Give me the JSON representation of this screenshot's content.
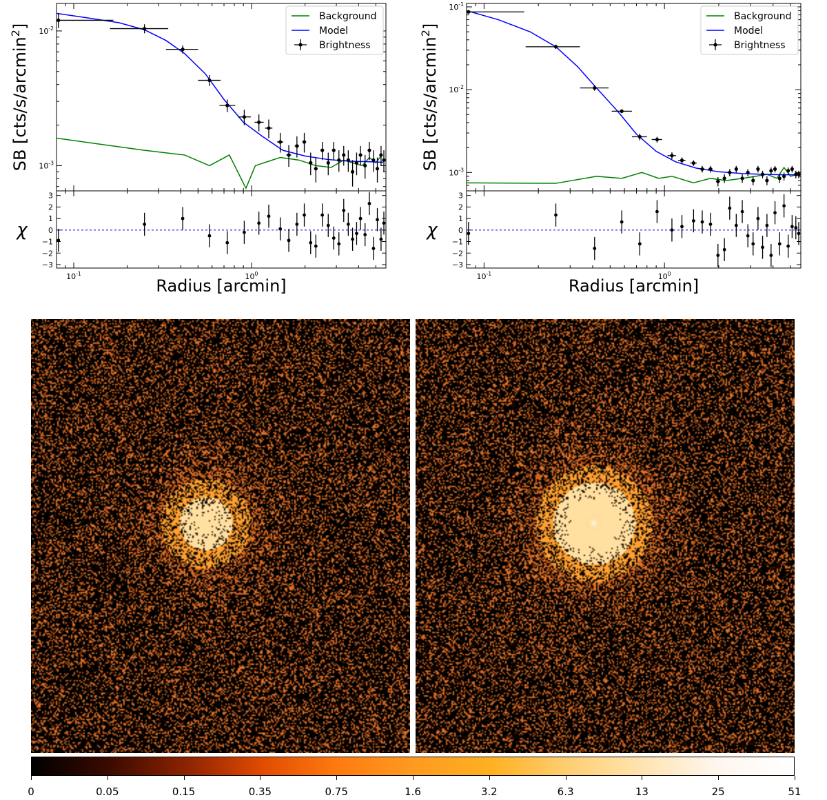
{
  "figure": {
    "colors": {
      "background": "#008000",
      "model": "#0000ff",
      "brightness": "#000000",
      "zero_line": "#0000ff"
    }
  },
  "chart_data": [
    {
      "type": "line",
      "name": "left-profile",
      "xlabel": "Radius [arcmin]",
      "ylabel": "SB [cts/s/arcmin2]",
      "xscale": "log",
      "yscale": "log",
      "xlim": [
        0.08,
        5.7
      ],
      "ylim": [
        0.00065,
        0.016
      ],
      "xticks": [
        {
          "v": 0.1,
          "label": "10^-1"
        },
        {
          "v": 1,
          "label": "10^0"
        }
      ],
      "yticks": [
        {
          "v": 0.001,
          "label": "10^-3"
        },
        {
          "v": 0.01,
          "label": "10^-2"
        }
      ],
      "legend": {
        "position": "top-right",
        "entries": [
          "Background",
          "Model",
          "Brightness"
        ]
      },
      "series": [
        {
          "name": "Background",
          "x": [
            0.08,
            0.25,
            0.42,
            0.58,
            0.75,
            0.93,
            1.05,
            1.45,
            1.85,
            2.3,
            2.8,
            3.3,
            3.7,
            4.2,
            4.6,
            5.0,
            5.4
          ],
          "y": [
            0.0016,
            0.0013,
            0.0012,
            0.001,
            0.0012,
            0.00068,
            0.001,
            0.00115,
            0.0011,
            0.001,
            0.00097,
            0.0011,
            0.00105,
            0.001,
            0.00115,
            0.00105,
            0.0012
          ]
        },
        {
          "name": "Model",
          "x": [
            0.08,
            0.12,
            0.18,
            0.25,
            0.33,
            0.42,
            0.55,
            0.7,
            0.9,
            1.15,
            1.5,
            2.0,
            2.7,
            3.5,
            4.5,
            5.5
          ],
          "y": [
            0.0135,
            0.0125,
            0.0115,
            0.0102,
            0.0085,
            0.0068,
            0.0048,
            0.0031,
            0.0021,
            0.00165,
            0.0013,
            0.00118,
            0.00111,
            0.00108,
            0.00107,
            0.00106
          ]
        },
        {
          "name": "Brightness",
          "x": [
            0.082,
            0.25,
            0.41,
            0.58,
            0.73,
            0.91,
            1.1,
            1.25,
            1.45,
            1.62,
            1.8,
            1.98,
            2.15,
            2.3,
            2.5,
            2.7,
            2.9,
            3.1,
            3.3,
            3.5,
            3.7,
            3.9,
            4.1,
            4.35,
            4.6,
            4.85,
            5.1,
            5.35,
            5.55
          ],
          "xerr_lo": [
            0.0,
            0.09,
            0.08,
            0.08,
            0.07,
            0.07,
            0.06,
            0.06,
            0.06,
            0.05,
            0.05,
            0.05,
            0.05,
            0.05,
            0.05,
            0.05,
            0.05,
            0.05,
            0.05,
            0.05,
            0.05,
            0.05,
            0.05,
            0.05,
            0.05,
            0.05,
            0.05,
            0.05,
            0.05
          ],
          "xerr_hi": [
            0.085,
            0.09,
            0.09,
            0.09,
            0.08,
            0.08,
            0.07,
            0.06,
            0.06,
            0.05,
            0.05,
            0.05,
            0.05,
            0.05,
            0.05,
            0.05,
            0.05,
            0.05,
            0.05,
            0.05,
            0.05,
            0.05,
            0.05,
            0.05,
            0.05,
            0.05,
            0.05,
            0.05,
            0.05
          ],
          "y": [
            0.012,
            0.0104,
            0.0073,
            0.0043,
            0.0028,
            0.0023,
            0.0021,
            0.0019,
            0.0015,
            0.0012,
            0.0014,
            0.0015,
            0.00105,
            0.00095,
            0.0013,
            0.00105,
            0.0013,
            0.0011,
            0.0012,
            0.0011,
            0.0009,
            0.00105,
            0.0012,
            0.001,
            0.0013,
            0.0011,
            0.00095,
            0.0012,
            0.0011
          ],
          "yerr": [
            0.0015,
            0.0008,
            0.0005,
            0.0004,
            0.0003,
            0.0003,
            0.0003,
            0.0003,
            0.00025,
            0.00022,
            0.00025,
            0.00025,
            0.0002,
            0.0002,
            0.0002,
            0.0002,
            0.0002,
            0.0002,
            0.0002,
            0.0002,
            0.0002,
            0.0002,
            0.0002,
            0.0002,
            0.0002,
            0.0002,
            0.0002,
            0.0002,
            0.0002
          ]
        }
      ],
      "residuals": {
        "ylabel": "χ",
        "ylim": [
          -3.3,
          3.4
        ],
        "yticks": [
          -3,
          -2,
          -1,
          0,
          1,
          2,
          3
        ],
        "x": [
          0.082,
          0.25,
          0.41,
          0.58,
          0.73,
          0.91,
          1.1,
          1.25,
          1.45,
          1.62,
          1.8,
          1.98,
          2.15,
          2.3,
          2.5,
          2.7,
          2.9,
          3.1,
          3.3,
          3.5,
          3.7,
          3.9,
          4.1,
          4.35,
          4.6,
          4.85,
          5.1,
          5.35,
          5.55
        ],
        "y": [
          -0.9,
          0.5,
          1.0,
          -0.5,
          -1.1,
          -0.2,
          0.6,
          1.2,
          0.1,
          -0.9,
          0.5,
          1.3,
          -1.1,
          -1.4,
          1.3,
          0.4,
          -0.7,
          -1.2,
          1.7,
          0.5,
          -0.8,
          -0.3,
          1.0,
          -0.4,
          2.3,
          -1.6,
          0.9,
          -0.8,
          0.6
        ],
        "err": [
          1,
          1,
          1,
          1,
          1,
          1,
          1,
          1,
          1,
          1,
          1,
          1,
          1,
          1,
          1,
          1,
          1,
          1,
          1,
          1,
          1,
          1,
          1,
          1,
          1,
          1,
          1,
          1,
          1
        ]
      }
    },
    {
      "type": "line",
      "name": "right-profile",
      "xlabel": "Radius [arcmin]",
      "ylabel": "SB [cts/s/arcmin2]",
      "xscale": "log",
      "yscale": "log",
      "xlim": [
        0.08,
        5.7
      ],
      "ylim": [
        0.0006,
        0.11
      ],
      "xticks": [
        {
          "v": 0.1,
          "label": "10^-1"
        },
        {
          "v": 1,
          "label": "10^0"
        }
      ],
      "yticks": [
        {
          "v": 0.001,
          "label": "10^-3"
        },
        {
          "v": 0.01,
          "label": "10^-2"
        },
        {
          "v": 0.1,
          "label": "10^-1"
        }
      ],
      "legend": {
        "position": "top-right",
        "entries": [
          "Background",
          "Model",
          "Brightness"
        ]
      },
      "series": [
        {
          "name": "Background",
          "x": [
            0.08,
            0.25,
            0.42,
            0.58,
            0.75,
            0.93,
            1.1,
            1.45,
            1.8,
            2.2,
            2.7,
            3.2,
            3.7,
            4.2,
            4.6,
            5.0,
            5.5
          ],
          "y": [
            0.00075,
            0.00074,
            0.0009,
            0.00085,
            0.001,
            0.00085,
            0.0009,
            0.00075,
            0.00085,
            0.0008,
            0.00085,
            0.0009,
            0.00095,
            0.00085,
            0.00115,
            0.0009,
            0.00095
          ]
        },
        {
          "name": "Model",
          "x": [
            0.08,
            0.12,
            0.18,
            0.25,
            0.33,
            0.42,
            0.55,
            0.7,
            0.9,
            1.15,
            1.5,
            2.0,
            2.7,
            3.5,
            4.5,
            5.5
          ],
          "y": [
            0.09,
            0.07,
            0.05,
            0.033,
            0.019,
            0.0105,
            0.0055,
            0.0029,
            0.0018,
            0.00135,
            0.00113,
            0.00102,
            0.00097,
            0.00095,
            0.00094,
            0.00094
          ]
        },
        {
          "name": "Brightness",
          "x": [
            0.082,
            0.25,
            0.41,
            0.58,
            0.73,
            0.91,
            1.1,
            1.25,
            1.45,
            1.62,
            1.8,
            1.98,
            2.15,
            2.3,
            2.5,
            2.7,
            2.9,
            3.1,
            3.3,
            3.5,
            3.7,
            3.9,
            4.1,
            4.35,
            4.6,
            4.85,
            5.1,
            5.35,
            5.55
          ],
          "xerr_lo": [
            0.0,
            0.08,
            0.07,
            0.07,
            0.07,
            0.06,
            0.06,
            0.06,
            0.06,
            0.05,
            0.05,
            0.05,
            0.05,
            0.05,
            0.05,
            0.05,
            0.05,
            0.05,
            0.05,
            0.05,
            0.05,
            0.05,
            0.05,
            0.05,
            0.05,
            0.05,
            0.05,
            0.05,
            0.05
          ],
          "xerr_hi": [
            0.085,
            0.09,
            0.08,
            0.08,
            0.07,
            0.06,
            0.06,
            0.06,
            0.06,
            0.05,
            0.05,
            0.05,
            0.05,
            0.05,
            0.05,
            0.05,
            0.05,
            0.05,
            0.05,
            0.05,
            0.05,
            0.05,
            0.05,
            0.05,
            0.05,
            0.05,
            0.05,
            0.05,
            0.05
          ],
          "y": [
            0.087,
            0.033,
            0.0105,
            0.0055,
            0.0027,
            0.0025,
            0.0016,
            0.0014,
            0.0013,
            0.0011,
            0.0011,
            0.00078,
            0.00085,
            0.001,
            0.0011,
            0.00085,
            0.001,
            0.0008,
            0.0011,
            0.00095,
            0.0008,
            0.00105,
            0.0011,
            0.00085,
            0.0009,
            0.00105,
            0.0011,
            0.00095,
            0.00095
          ],
          "yerr": [
            0.003,
            0.002,
            0.0008,
            0.0003,
            0.00025,
            0.0002,
            0.00015,
            0.00012,
            0.0001,
            0.0001,
            0.0001,
            0.0001,
            0.0001,
            0.0001,
            0.0001,
            0.0001,
            0.0001,
            0.0001,
            0.0001,
            0.0001,
            0.0001,
            0.0001,
            0.0001,
            0.0001,
            0.0001,
            0.0001,
            0.0001,
            0.0001,
            0.0001
          ]
        }
      ],
      "residuals": {
        "ylabel": "χ",
        "ylim": [
          -3.3,
          3.4
        ],
        "yticks": [
          -3,
          -2,
          -1,
          0,
          1,
          2,
          3
        ],
        "x": [
          0.082,
          0.25,
          0.41,
          0.58,
          0.73,
          0.91,
          1.1,
          1.25,
          1.45,
          1.62,
          1.8,
          1.98,
          2.15,
          2.3,
          2.5,
          2.7,
          2.9,
          3.1,
          3.3,
          3.5,
          3.7,
          3.9,
          4.1,
          4.35,
          4.6,
          4.85,
          5.1,
          5.35,
          5.55
        ],
        "y": [
          -0.3,
          1.3,
          -1.6,
          0.7,
          -1.2,
          1.6,
          0.0,
          0.3,
          0.8,
          0.7,
          0.5,
          -2.2,
          -1.7,
          1.9,
          0.4,
          1.6,
          -0.5,
          -1.2,
          1.0,
          -1.5,
          0.4,
          -2.2,
          1.5,
          -1.2,
          2.1,
          -1.4,
          0.3,
          0.2,
          -0.3
        ],
        "err": [
          1,
          1,
          1,
          1,
          1,
          1,
          1,
          1,
          1,
          1,
          1,
          1,
          1,
          1,
          1,
          1,
          1,
          1,
          1,
          1,
          1,
          1,
          1,
          1,
          1,
          1,
          1,
          1,
          1
        ]
      }
    }
  ],
  "images": {
    "left": {
      "source_center": [
        0.46,
        0.47
      ],
      "source_radius": 0.04,
      "peak": 0.75
    },
    "right": {
      "source_center": [
        0.47,
        0.47
      ],
      "source_radius": 0.045,
      "peak": 1.0
    }
  },
  "colorbar": {
    "ticks": [
      "0",
      "0.05",
      "0.15",
      "0.35",
      "0.75",
      "1.6",
      "3.2",
      "6.3",
      "13",
      "25",
      "51"
    ],
    "colors": [
      "#000000",
      "#3a0a00",
      "#8a2200",
      "#e04a00",
      "#ff7a10",
      "#ff9a20",
      "#ffb020",
      "#ffcd70",
      "#ffe4b0",
      "#fff6ee",
      "#ffffff"
    ]
  }
}
